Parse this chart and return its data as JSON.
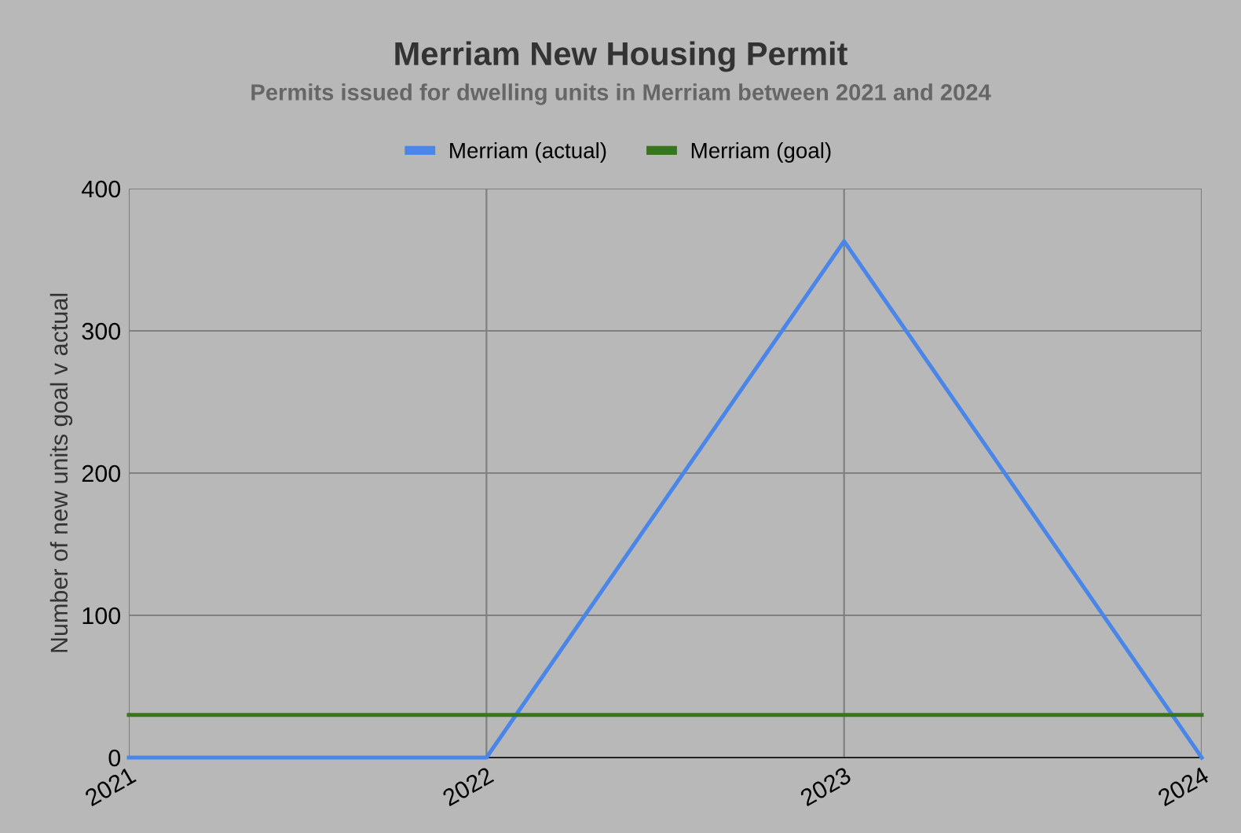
{
  "chart_data": {
    "type": "line",
    "title": "Merriam New Housing Permit",
    "subtitle": "Permits issued for dwelling units in Merriam between 2021 and 2024",
    "ylabel": "Number of new units goal v actual",
    "categories": [
      "2021",
      "2022",
      "2023",
      "2024"
    ],
    "series": [
      {
        "name": "Merriam (actual)",
        "color": "#4a86e8",
        "values": [
          0,
          0,
          363,
          0
        ]
      },
      {
        "name": "Merriam (goal)",
        "color": "#38761d",
        "values": [
          30,
          30,
          30,
          30
        ]
      }
    ],
    "ylim": [
      0,
      400
    ],
    "yticks": [
      0,
      100,
      200,
      300,
      400
    ],
    "grid": true,
    "legend": "top",
    "marker": "none",
    "line_style": "solid"
  }
}
